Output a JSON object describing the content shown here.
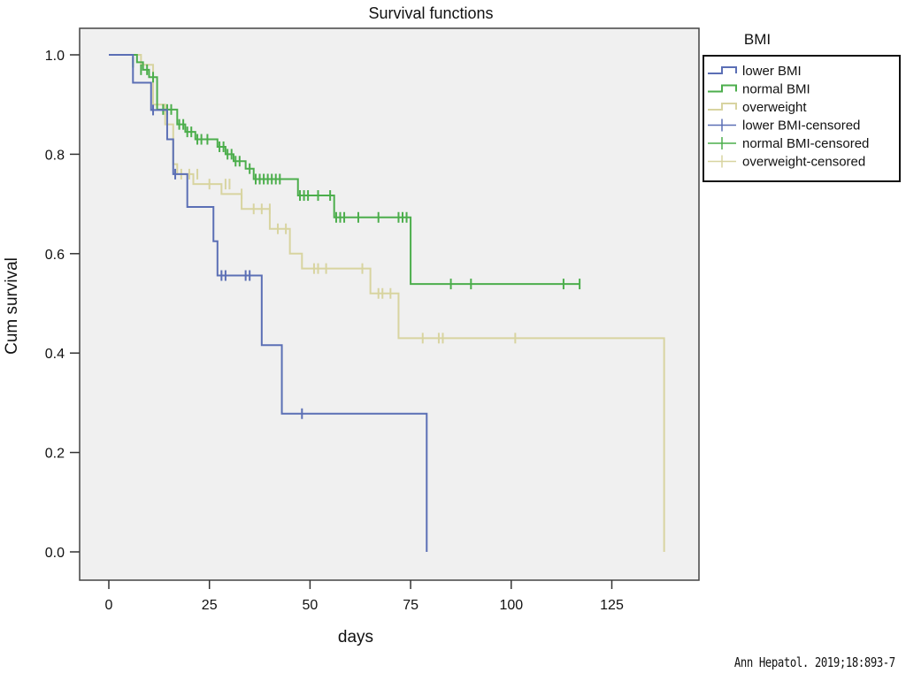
{
  "chart_data": {
    "type": "line",
    "subtype": "kaplan-meier step",
    "title": "Survival functions",
    "xlabel": "days",
    "ylabel": "Cum survival",
    "xlim": [
      -5,
      147
    ],
    "ylim": [
      -0.06,
      1.06
    ],
    "xticks": [
      0,
      25,
      50,
      75,
      100,
      125
    ],
    "xtick_labels": [
      "0",
      "25",
      "50",
      "75",
      "100",
      "125"
    ],
    "yticks": [
      0.0,
      0.2,
      0.4,
      0.6,
      0.8,
      1.0
    ],
    "ytick_labels": [
      "0.0",
      "0.2",
      "0.4",
      "0.6",
      "0.8",
      "1.0"
    ],
    "grid": false,
    "legend": {
      "title": "BMI",
      "placement": "right-outside-top",
      "entries": [
        {
          "label": "lower BMI",
          "kind": "step",
          "series": "lower"
        },
        {
          "label": "normal BMI",
          "kind": "step",
          "series": "normal"
        },
        {
          "label": "overweight",
          "kind": "step",
          "series": "overweight"
        },
        {
          "label": "lower BMI-censored",
          "kind": "censor",
          "series": "lower"
        },
        {
          "label": "normal BMI-censored",
          "kind": "censor",
          "series": "normal"
        },
        {
          "label": "overweight-censored",
          "kind": "censor",
          "series": "overweight"
        }
      ]
    },
    "series": [
      {
        "id": "lower",
        "name": "lower BMI",
        "color": "#5b6fb5",
        "steps": [
          [
            0,
            1.0
          ],
          [
            6,
            0.944
          ],
          [
            10.5,
            0.889
          ],
          [
            14.5,
            0.83
          ],
          [
            16,
            0.76
          ],
          [
            19.5,
            0.694
          ],
          [
            26,
            0.625
          ],
          [
            27,
            0.556
          ],
          [
            38,
            0.416
          ],
          [
            43,
            0.278
          ],
          [
            79,
            0.0
          ]
        ],
        "end_x": 79,
        "censored": [
          [
            11,
            0.889
          ],
          [
            16.5,
            0.76
          ],
          [
            28,
            0.556
          ],
          [
            29,
            0.556
          ],
          [
            34,
            0.556
          ],
          [
            35,
            0.556
          ],
          [
            48,
            0.278
          ]
        ]
      },
      {
        "id": "normal",
        "name": "normal BMI",
        "color": "#4cae4c",
        "steps": [
          [
            0,
            1.0
          ],
          [
            7,
            0.985
          ],
          [
            8.5,
            0.97
          ],
          [
            10,
            0.955
          ],
          [
            12,
            0.89
          ],
          [
            17,
            0.86
          ],
          [
            19,
            0.845
          ],
          [
            21.5,
            0.83
          ],
          [
            27,
            0.815
          ],
          [
            29,
            0.8
          ],
          [
            31,
            0.786
          ],
          [
            34,
            0.771
          ],
          [
            36,
            0.75
          ],
          [
            47,
            0.717
          ],
          [
            56,
            0.673
          ],
          [
            75,
            0.539
          ]
        ],
        "end_x": 117,
        "censored": [
          [
            6,
            0.985
          ],
          [
            8,
            0.97
          ],
          [
            9.5,
            0.97
          ],
          [
            11,
            0.955
          ],
          [
            13.5,
            0.89
          ],
          [
            14.5,
            0.89
          ],
          [
            15.5,
            0.89
          ],
          [
            17.5,
            0.86
          ],
          [
            18.5,
            0.86
          ],
          [
            19.5,
            0.845
          ],
          [
            20.5,
            0.845
          ],
          [
            22,
            0.83
          ],
          [
            23,
            0.83
          ],
          [
            24.5,
            0.83
          ],
          [
            27.5,
            0.815
          ],
          [
            28.5,
            0.815
          ],
          [
            29.5,
            0.8
          ],
          [
            30.5,
            0.8
          ],
          [
            31.5,
            0.786
          ],
          [
            32.5,
            0.786
          ],
          [
            35,
            0.771
          ],
          [
            36.5,
            0.75
          ],
          [
            37.5,
            0.75
          ],
          [
            38.5,
            0.75
          ],
          [
            39.5,
            0.75
          ],
          [
            40.5,
            0.75
          ],
          [
            41.5,
            0.75
          ],
          [
            42.5,
            0.75
          ],
          [
            47.5,
            0.717
          ],
          [
            48.5,
            0.717
          ],
          [
            49.5,
            0.717
          ],
          [
            52,
            0.717
          ],
          [
            55,
            0.717
          ],
          [
            56.5,
            0.673
          ],
          [
            57.5,
            0.673
          ],
          [
            58.5,
            0.673
          ],
          [
            62,
            0.673
          ],
          [
            67,
            0.673
          ],
          [
            72,
            0.673
          ],
          [
            73,
            0.673
          ],
          [
            74,
            0.673
          ],
          [
            85,
            0.539
          ],
          [
            90,
            0.539
          ],
          [
            113,
            0.539
          ],
          [
            117,
            0.539
          ]
        ]
      },
      {
        "id": "overweight",
        "name": "overweight",
        "color": "#d8d4a0",
        "steps": [
          [
            0,
            1.0
          ],
          [
            8,
            0.98
          ],
          [
            11,
            0.9
          ],
          [
            14,
            0.86
          ],
          [
            16,
            0.78
          ],
          [
            17,
            0.76
          ],
          [
            21,
            0.74
          ],
          [
            28,
            0.72
          ],
          [
            33,
            0.69
          ],
          [
            40,
            0.65
          ],
          [
            45,
            0.6
          ],
          [
            48,
            0.57
          ],
          [
            65,
            0.52
          ],
          [
            72,
            0.43
          ],
          [
            138,
            0.0
          ]
        ],
        "end_x": 138,
        "censored": [
          [
            18,
            0.76
          ],
          [
            20,
            0.76
          ],
          [
            22,
            0.76
          ],
          [
            25,
            0.74
          ],
          [
            29,
            0.74
          ],
          [
            30,
            0.74
          ],
          [
            33,
            0.72
          ],
          [
            36,
            0.69
          ],
          [
            38,
            0.69
          ],
          [
            40,
            0.69
          ],
          [
            42,
            0.65
          ],
          [
            44,
            0.65
          ],
          [
            51,
            0.57
          ],
          [
            52,
            0.57
          ],
          [
            54,
            0.57
          ],
          [
            63,
            0.57
          ],
          [
            67,
            0.52
          ],
          [
            68,
            0.52
          ],
          [
            70,
            0.52
          ],
          [
            78,
            0.43
          ],
          [
            82,
            0.43
          ],
          [
            83,
            0.43
          ],
          [
            101,
            0.43
          ]
        ]
      }
    ]
  },
  "citation": "Ann Hepatol. 2019;18:893-7"
}
